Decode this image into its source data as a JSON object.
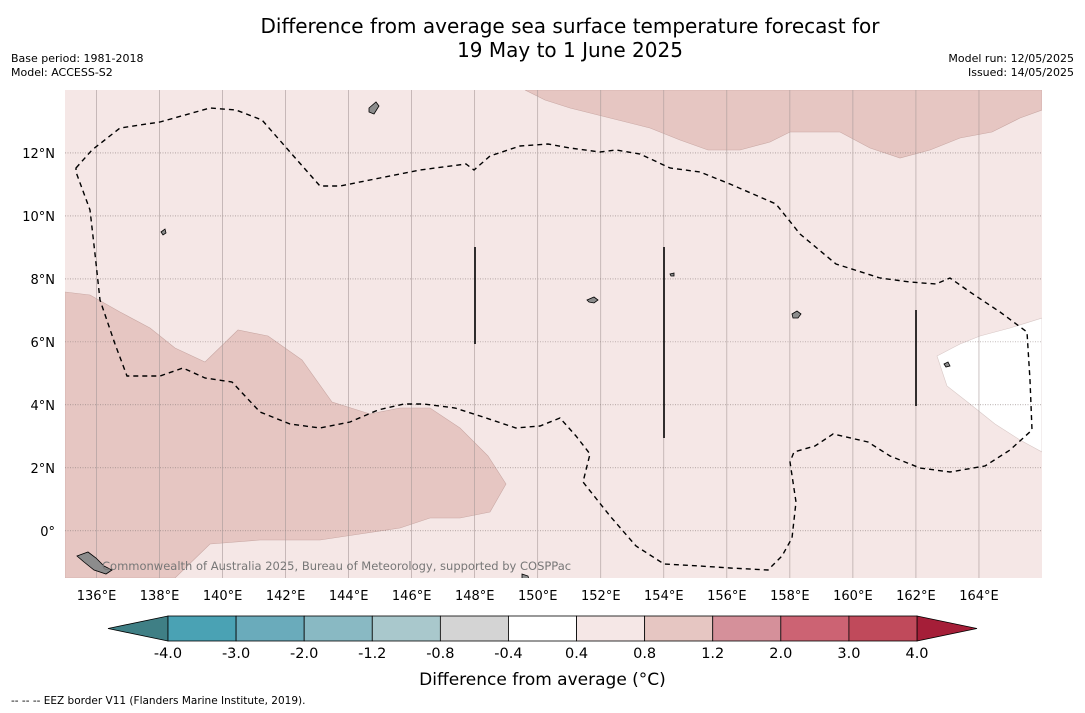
{
  "title_line1": "Difference from average sea surface temperature forecast for",
  "title_line2": "19 May to 1 June 2025",
  "base_period": "Base period: 1981-2018",
  "model": "Model: ACCESS-S2",
  "model_run": "Model run: 12/05/2025",
  "issued": "Issued: 14/05/2025",
  "credit": "Commonwealth of Australia 2025, Bureau of Meteorology, supported by COSPPac",
  "footer": "-- -- -- EEZ border V11 (Flanders Marine Institute, 2019).",
  "map": {
    "lon_range": [
      135,
      166
    ],
    "lat_range": [
      -1.5,
      14
    ],
    "lon_ticks": [
      {
        "v": 136,
        "label": "136°E"
      },
      {
        "v": 138,
        "label": "138°E"
      },
      {
        "v": 140,
        "label": "140°E"
      },
      {
        "v": 142,
        "label": "142°E"
      },
      {
        "v": 144,
        "label": "144°E"
      },
      {
        "v": 146,
        "label": "146°E"
      },
      {
        "v": 148,
        "label": "148°E"
      },
      {
        "v": 150,
        "label": "150°E"
      },
      {
        "v": 152,
        "label": "152°E"
      },
      {
        "v": 154,
        "label": "154°E"
      },
      {
        "v": 156,
        "label": "156°E"
      },
      {
        "v": 158,
        "label": "158°E"
      },
      {
        "v": 160,
        "label": "160°E"
      },
      {
        "v": 162,
        "label": "162°E"
      },
      {
        "v": 164,
        "label": "164°E"
      }
    ],
    "lat_ticks": [
      {
        "v": 12,
        "label": "12°N"
      },
      {
        "v": 10,
        "label": "10°N"
      },
      {
        "v": 8,
        "label": "8°N"
      },
      {
        "v": 6,
        "label": "6°N"
      },
      {
        "v": 4,
        "label": "4°N"
      },
      {
        "v": 2,
        "label": "2°N"
      },
      {
        "v": 0,
        "label": "0°"
      }
    ],
    "background_anomaly_band": "0.4 to 0.8",
    "regions": [
      {
        "band": "0.8 to 1.2",
        "color": "#e6c6c2",
        "name": "north-warm-region"
      },
      {
        "band": "0.8 to 1.2",
        "color": "#e6c6c2",
        "name": "southwest-warm-region"
      },
      {
        "band": "-0.4 to 0.4",
        "color": "#ffffff",
        "name": "east-neutral-region"
      }
    ]
  },
  "colorbar": {
    "title": "Difference from average (°C)",
    "ticks": [
      "-4.0",
      "-3.0",
      "-2.0",
      "-1.2",
      "-0.8",
      "-0.4",
      "0.4",
      "0.8",
      "1.2",
      "2.0",
      "3.0",
      "4.0"
    ],
    "colors": [
      "#4aa2b4",
      "#6aabbb",
      "#89b9c3",
      "#a9c8cc",
      "#d4d4d4",
      "#ffffff",
      "#f5e7e6",
      "#e6c6c2",
      "#d5909a",
      "#cc6373",
      "#c04a5b"
    ],
    "extend_low_color": "#3f7f85",
    "extend_high_color": "#a51e38"
  }
}
